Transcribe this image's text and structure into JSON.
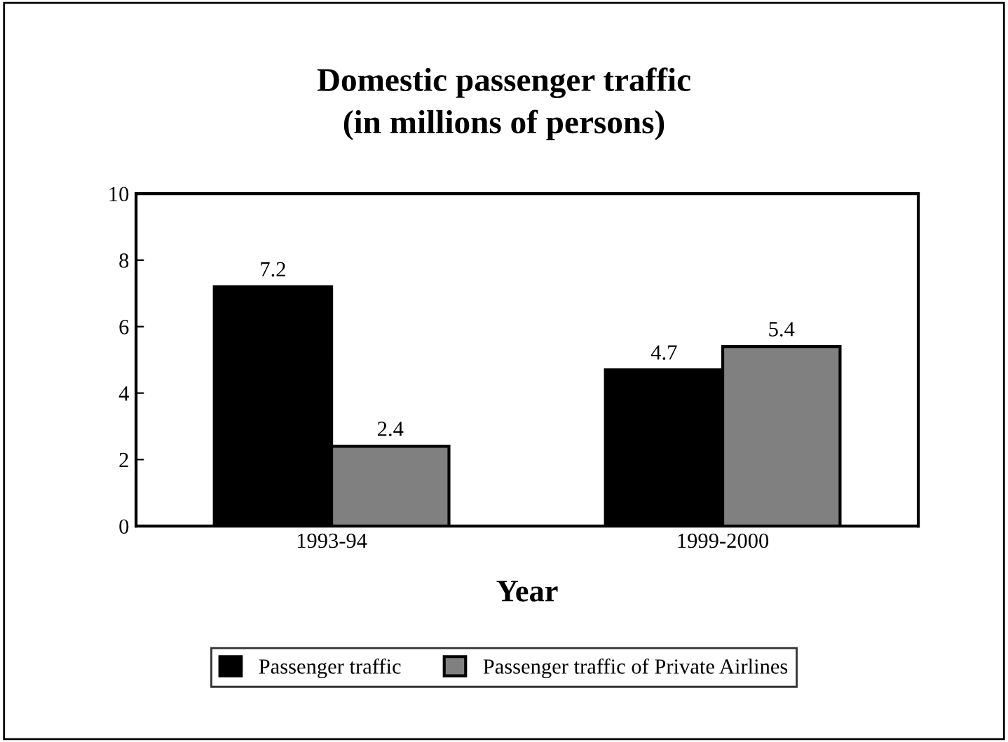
{
  "chart_data": {
    "type": "bar",
    "title": "Domestic passenger traffic\n(in millions of persons)",
    "xlabel": "Year",
    "categories": [
      "1993-94",
      "1999-2000"
    ],
    "series": [
      {
        "name": "Passenger traffic",
        "color": "#000000",
        "values": [
          7.2,
          4.7
        ]
      },
      {
        "name": "Passenger traffic of Private Airlines",
        "color": "#808080",
        "values": [
          2.4,
          5.4
        ]
      }
    ],
    "ylim": [
      0,
      10
    ],
    "yticks": [
      0,
      2,
      4,
      6,
      8,
      10
    ],
    "data_labels": true,
    "grid": false,
    "legend": "bottom"
  }
}
